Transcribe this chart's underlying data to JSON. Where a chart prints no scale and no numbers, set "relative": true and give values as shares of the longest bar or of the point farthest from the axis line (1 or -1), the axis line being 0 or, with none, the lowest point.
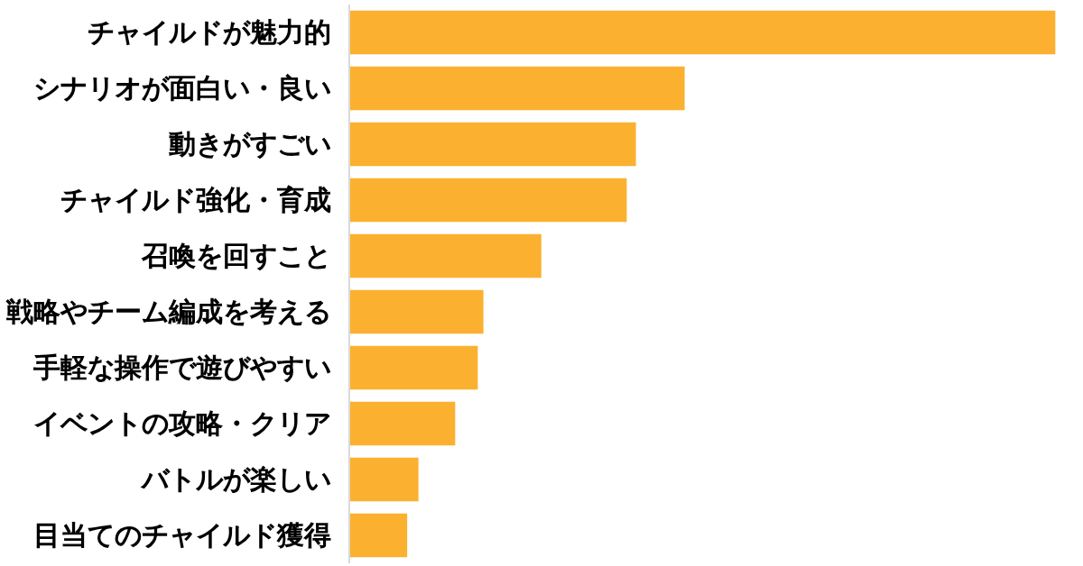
{
  "chart_data": {
    "type": "bar",
    "orientation": "horizontal",
    "relative": true,
    "categories": [
      "チャイルドが魅力的",
      "シナリオが面白い・良い",
      "動きがすごい",
      "チャイルド強化・育成",
      "召喚を回すこと",
      "戦略やチーム編成を考える",
      "手軽な操作で遊びやすい",
      "イベントの攻略・クリア",
      "バトルが楽しい",
      "目当てのチャイルド獲得"
    ],
    "values": [
      1,
      0.475,
      0.406,
      0.393,
      0.272,
      0.19,
      0.182,
      0.15,
      0.098,
      0.082
    ],
    "color": "#fbb12f",
    "grid": false
  }
}
